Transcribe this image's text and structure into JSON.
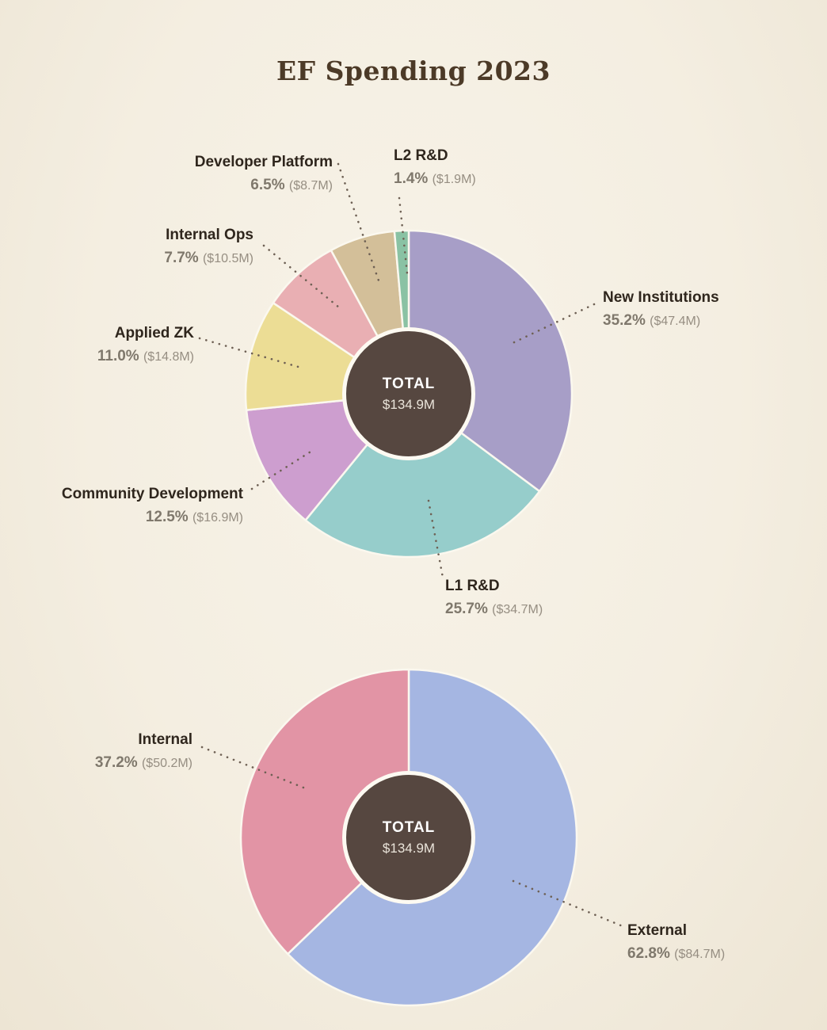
{
  "chart_data": [
    {
      "type": "pie",
      "title": "EF Spending 2023",
      "total_label": "TOTAL",
      "total_value": "$134.9M",
      "legend_position": "callout-labels",
      "start_angle_deg": 0,
      "direction": "clockwise",
      "slices": [
        {
          "slug": "new-institutions",
          "label": "New Institutions",
          "pct": 35.2,
          "pct_label": "35.2%",
          "value_label": "($47.4M)",
          "color": "#a79ec7"
        },
        {
          "slug": "l1-rd",
          "label": "L1 R&D",
          "pct": 25.7,
          "pct_label": "25.7%",
          "value_label": "($34.7M)",
          "color": "#96cdcb"
        },
        {
          "slug": "community-development",
          "label": "Community Development",
          "pct": 12.5,
          "pct_label": "12.5%",
          "value_label": "($16.9M)",
          "color": "#cd9ecf"
        },
        {
          "slug": "applied-zk",
          "label": "Applied ZK",
          "pct": 11.0,
          "pct_label": "11.0%",
          "value_label": "($14.8M)",
          "color": "#ecdd95"
        },
        {
          "slug": "internal-ops",
          "label": "Internal Ops",
          "pct": 7.7,
          "pct_label": "7.7%",
          "value_label": "($10.5M)",
          "color": "#e9afb3"
        },
        {
          "slug": "developer-platform",
          "label": "Developer Platform",
          "pct": 6.5,
          "pct_label": "6.5%",
          "value_label": "($8.7M)",
          "color": "#d3bf99"
        },
        {
          "slug": "l2-rd",
          "label": "L2 R&D",
          "pct": 1.4,
          "pct_label": "1.4%",
          "value_label": "($1.9M)",
          "color": "#8ac2a4"
        }
      ]
    },
    {
      "type": "pie",
      "total_label": "TOTAL",
      "total_value": "$134.9M",
      "legend_position": "callout-labels",
      "start_angle_deg": 0,
      "direction": "clockwise",
      "slices": [
        {
          "slug": "external",
          "label": "External",
          "pct": 62.8,
          "pct_label": "62.8%",
          "value_label": "($84.7M)",
          "color": "#a5b6e2"
        },
        {
          "slug": "internal",
          "label": "Internal",
          "pct": 37.2,
          "pct_label": "37.2%",
          "value_label": "($50.2M)",
          "color": "#e294a5"
        }
      ]
    }
  ]
}
